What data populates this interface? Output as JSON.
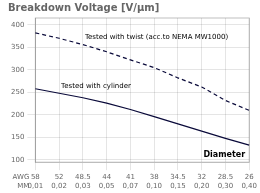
{
  "chart_data": {
    "type": "line",
    "title": "Breakdown Voltage [V/μm]",
    "categories": [
      "58",
      "52",
      "48.5",
      "44",
      "41",
      "38",
      "34.5",
      "32",
      "28.5",
      "26"
    ],
    "xlabel": "AWG",
    "categories_2": [
      "0,01",
      "0,02",
      "0,03",
      "0,05",
      "0,07",
      "0,10",
      "0,15",
      "0,20",
      "0,30",
      "0,40"
    ],
    "xlabel_2": "MM",
    "series": [
      {
        "name": "Tested with twist (acc.to NEMA MW1000)",
        "color": "#0a0a3a",
        "line_style": "dashed",
        "values": [
          382,
          370,
          356,
          340,
          322,
          305,
          282,
          262,
          232,
          210
        ]
      },
      {
        "name": "Tested with cylinder",
        "color": "#0a0a3a",
        "line_style": "solid",
        "values": [
          258,
          248,
          238,
          226,
          212,
          196,
          180,
          164,
          148,
          133
        ]
      }
    ],
    "annotations": [
      "Diameter"
    ],
    "ylim": [
      95,
      415
    ],
    "yticks": [
      100,
      150,
      200,
      250,
      300,
      350,
      400
    ],
    "grid": true
  }
}
